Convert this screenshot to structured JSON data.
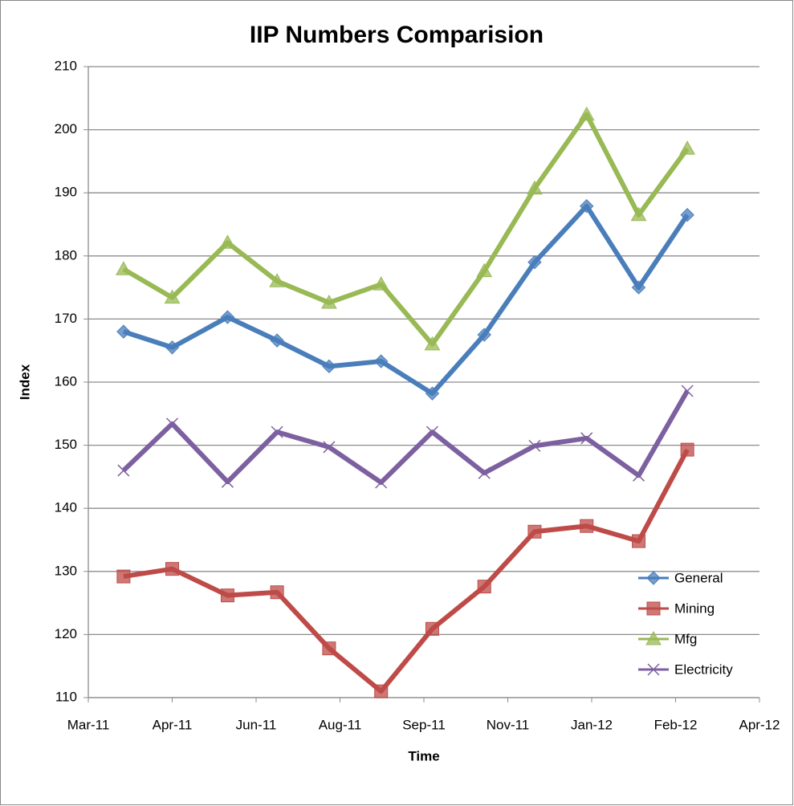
{
  "chart_data": {
    "type": "line",
    "title": "IIP Numbers Comparision",
    "x_label": "Time",
    "y_label": "Index",
    "x": [
      0.42,
      1.0,
      1.66,
      2.25,
      2.87,
      3.49,
      4.1,
      4.72,
      5.32,
      5.94,
      6.56,
      7.14
    ],
    "xlim": [
      0,
      8
    ],
    "xticks": [
      {
        "value": 0,
        "label": "Mar-11"
      },
      {
        "value": 1,
        "label": "Apr-11"
      },
      {
        "value": 2,
        "label": "Jun-11"
      },
      {
        "value": 3,
        "label": "Aug-11"
      },
      {
        "value": 4,
        "label": "Sep-11"
      },
      {
        "value": 5,
        "label": "Nov-11"
      },
      {
        "value": 6,
        "label": "Jan-12"
      },
      {
        "value": 7,
        "label": "Feb-12"
      },
      {
        "value": 8,
        "label": "Apr-12"
      }
    ],
    "ylim": [
      110,
      210
    ],
    "yticks": [
      110,
      120,
      130,
      140,
      150,
      160,
      170,
      180,
      190,
      200,
      210
    ],
    "grid": true,
    "legend": "lower right",
    "series": [
      {
        "name": "General",
        "color": "#4a7ebb",
        "marker": "diamond",
        "values": [
          168.0,
          165.5,
          170.3,
          166.6,
          162.5,
          163.3,
          158.2,
          167.5,
          179.0,
          187.9,
          175.0,
          186.5
        ]
      },
      {
        "name": "Mining",
        "color": "#be4b48",
        "marker": "square",
        "values": [
          129.2,
          130.4,
          126.2,
          126.7,
          117.8,
          111.0,
          120.9,
          127.6,
          136.3,
          137.2,
          134.8,
          149.3
        ]
      },
      {
        "name": "Mfg",
        "color": "#98b954",
        "marker": "triangle",
        "values": [
          177.9,
          173.4,
          182.1,
          176.0,
          172.6,
          175.5,
          166.0,
          177.6,
          190.7,
          202.4,
          186.5,
          197.0
        ]
      },
      {
        "name": "Electricity",
        "color": "#7d60a0",
        "marker": "cross",
        "values": [
          146.0,
          153.4,
          144.2,
          152.1,
          149.7,
          144.1,
          152.1,
          145.6,
          149.9,
          151.1,
          145.2,
          158.6
        ]
      }
    ]
  }
}
